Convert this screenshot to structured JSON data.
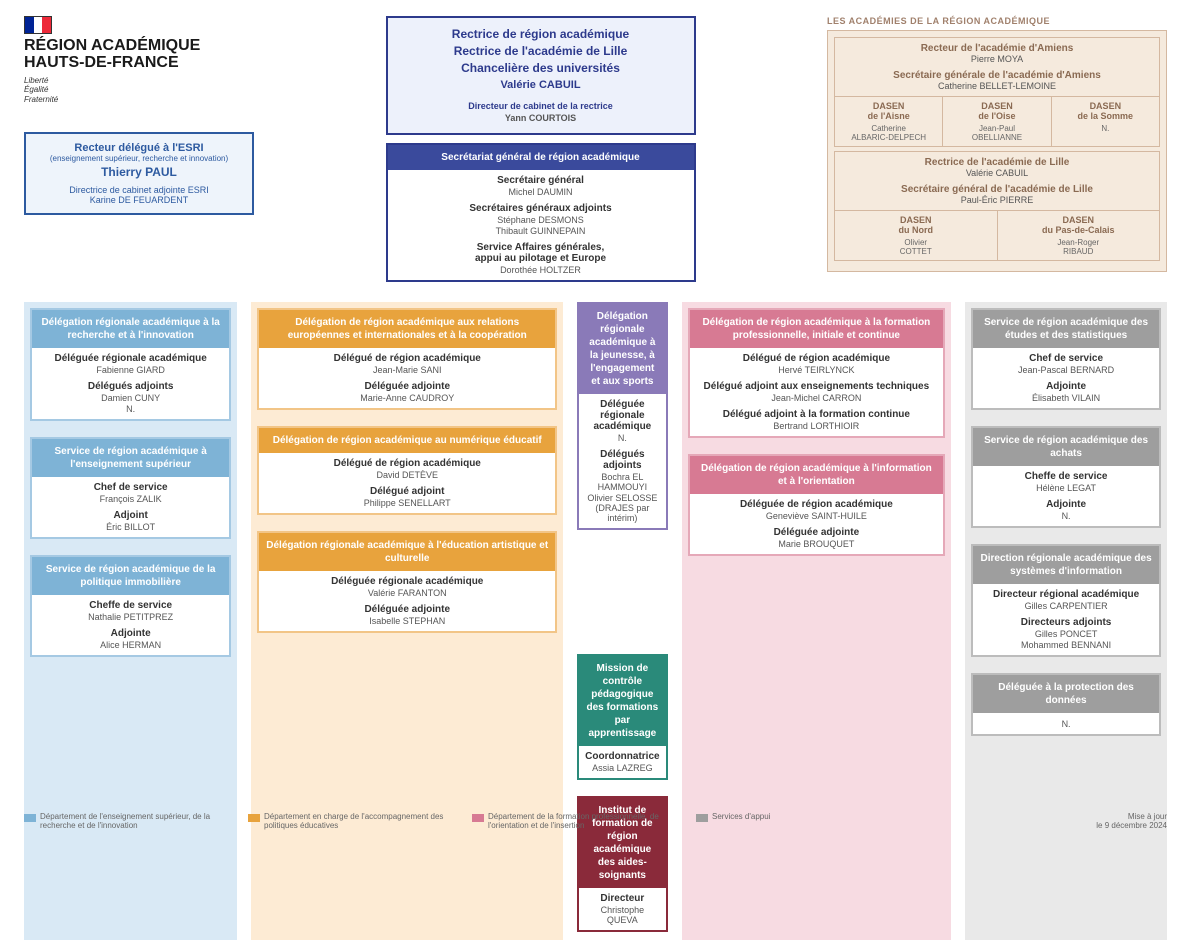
{
  "colors": {
    "dept_esri_bg": "#d9e9f5",
    "dept_esri_border": "#a5c9e3",
    "dept_esri_header": "#7eb3d6",
    "dept_edu_bg": "#fdebd4",
    "dept_edu_border": "#f2c587",
    "dept_edu_header": "#e8a33d",
    "dept_form_bg": "#f7dbe2",
    "dept_form_border": "#e5a8b8",
    "dept_form_header": "#d77a93",
    "svc_bg": "#e9e9e9",
    "svc_border": "#bcbcbc",
    "svc_header": "#9e9e9e",
    "purple_border": "#8a7ab8",
    "purple_header": "#8a7ab8",
    "teal_border": "#2a8a7a",
    "teal_header": "#2a8a7a",
    "maroon_border": "#8a2a3a",
    "maroon_header": "#8a2a3a",
    "rectrice_border": "#2d3a8c",
    "sg_header": "#3a4a9c",
    "flag_blue": "#002395",
    "flag_red": "#ed2939"
  },
  "brand": {
    "title_l1": "RÉGION ACADÉMIQUE",
    "title_l2": "HAUTS-DE-FRANCE",
    "motto_l1": "Liberté",
    "motto_l2": "Égalité",
    "motto_l3": "Fraternité"
  },
  "esri": {
    "title": "Recteur délégué à l'ESRI",
    "subtitle": "(enseignement supérieur, recherche et innovation)",
    "name": "Thierry PAUL",
    "role2": "Directrice de cabinet adjointe ESRI",
    "name2": "Karine DE FEUARDENT"
  },
  "rectrice": {
    "l1": "Rectrice de région académique",
    "l2": "Rectrice de l'académie de Lille",
    "l3": "Chancelière des universités",
    "name": "Valérie CABUIL",
    "dc_title": "Directeur de cabinet de la rectrice",
    "dc_name": "Yann COURTOIS"
  },
  "sg": {
    "header": "Secrétariat général de région académique",
    "r1": "Secrétaire général",
    "n1": "Michel DAUMIN",
    "r2": "Secrétaires généraux adjoints",
    "n2a": "Stéphane DESMONS",
    "n2b": "Thibault GUINNEPAIN",
    "r3": "Service Affaires générales,",
    "r3b": "appui au pilotage et Europe",
    "n3": "Dorothée HOLTZER"
  },
  "academies": {
    "label": "LES ACADÉMIES DE LA RÉGION ACADÉMIQUE",
    "amiens": {
      "t1": "Recteur de l'académie d'Amiens",
      "n1": "Pierre MOYA",
      "t2": "Secrétaire générale de l'académie d'Amiens",
      "n2": "Catherine BELLET-LEMOINE",
      "dasen": [
        {
          "t": "DASEN",
          "t2": "de l'Aisne",
          "n": "Catherine",
          "n2": "ALBARIC-DELPECH"
        },
        {
          "t": "DASEN",
          "t2": "de l'Oise",
          "n": "Jean-Paul",
          "n2": "OBELLIANNE"
        },
        {
          "t": "DASEN",
          "t2": "de la Somme",
          "n": "N.",
          "n2": ""
        }
      ]
    },
    "lille": {
      "t1": "Rectrice de l'académie de Lille",
      "n1": "Valérie CABUIL",
      "t2": "Secrétaire général de l'académie de Lille",
      "n2": "Paul-Éric PIERRE",
      "dasen": [
        {
          "t": "DASEN",
          "t2": "du Nord",
          "n": "Olivier",
          "n2": "COTTET"
        },
        {
          "t": "DASEN",
          "t2": "du Pas-de-Calais",
          "n": "Jean-Roger",
          "n2": "RIBAUD"
        }
      ]
    }
  },
  "col_esri": [
    {
      "h": "Délégation régionale académique à la recherche et à l'innovation",
      "rows": [
        {
          "r": "Déléguée régionale académique",
          "n": "Fabienne GIARD"
        },
        {
          "r": "Délégués adjoints",
          "n": "Damien CUNY"
        },
        {
          "r": "",
          "n": "N."
        }
      ]
    },
    {
      "h": "Service de région académique à l'enseignement supérieur",
      "rows": [
        {
          "r": "Chef de service",
          "n": "François ZALIK"
        },
        {
          "r": "Adjoint",
          "n": "Éric BILLOT"
        }
      ]
    },
    {
      "h": "Service de région académique de la politique immobilière",
      "rows": [
        {
          "r": "Cheffe de service",
          "n": "Nathalie PETITPREZ"
        },
        {
          "r": "Adjointe",
          "n": "Alice HERMAN"
        }
      ]
    }
  ],
  "col_edu": [
    {
      "h": "Délégation de région académique aux relations européennes et internationales et à la coopération",
      "rows": [
        {
          "r": "Délégué de région académique",
          "n": "Jean-Marie SANI"
        },
        {
          "r": "Déléguée adjointe",
          "n": "Marie-Anne CAUDROY"
        }
      ]
    },
    {
      "h": "Délégation de région académique au numérique éducatif",
      "rows": [
        {
          "r": "Délégué de région académique",
          "n": "David DETÈVE"
        },
        {
          "r": "Délégué adjoint",
          "n": "Philippe SENELLART"
        }
      ]
    },
    {
      "h": "Délégation régionale académique à l'éducation artistique et culturelle",
      "rows": [
        {
          "r": "Déléguée régionale académique",
          "n": "Valérie FARANTON"
        },
        {
          "r": "Déléguée adjointe",
          "n": "Isabelle STEPHAN"
        }
      ]
    }
  ],
  "col_mid": [
    {
      "color": "purple",
      "h": "Délégation régionale académique à la jeunesse, à l'engagement et aux sports",
      "rows": [
        {
          "r": "Déléguée régionale académique",
          "n": "N."
        },
        {
          "r": "Délégués adjoints",
          "n": "Bochra EL HAMMOUYI"
        },
        {
          "r": "",
          "n": "Olivier SELOSSE (DRAJES par intérim)"
        }
      ]
    },
    {
      "color": "teal",
      "h": "Mission de contrôle pédagogique des formations par apprentissage",
      "rows": [
        {
          "r": "Coordonnatrice",
          "n": "Assia LAZREG"
        }
      ]
    },
    {
      "color": "maroon",
      "h": "Institut de formation de région académique des aides-soignants",
      "rows": [
        {
          "r": "Directeur",
          "n": "Christophe QUEVA"
        }
      ]
    }
  ],
  "col_form": [
    {
      "h": "Délégation de région académique à la formation professionnelle, initiale et continue",
      "rows": [
        {
          "r": "Délégué de région académique",
          "n": "Hervé TEIRLYNCK"
        },
        {
          "r": "Délégué adjoint aux enseignements techniques",
          "n": "Jean-Michel CARRON"
        },
        {
          "r": "Délégué adjoint à la formation continue",
          "n": "Bertrand LORTHIOIR"
        }
      ]
    },
    {
      "h": "Délégation de région académique à l'information et à l'orientation",
      "rows": [
        {
          "r": "Déléguée de région académique",
          "n": "Geneviève SAINT-HUILE"
        },
        {
          "r": "Déléguée adjointe",
          "n": "Marie BROUQUET"
        }
      ]
    }
  ],
  "col_svc": [
    {
      "h": "Service de région académique des études et des statistiques",
      "rows": [
        {
          "r": "Chef de service",
          "n": "Jean-Pascal BERNARD"
        },
        {
          "r": "Adjointe",
          "n": "Élisabeth VILAIN"
        }
      ]
    },
    {
      "h": "Service de région académique des achats",
      "rows": [
        {
          "r": "Cheffe de service",
          "n": "Hélène LEGAT"
        },
        {
          "r": "Adjointe",
          "n": "N."
        }
      ]
    },
    {
      "h": "Direction régionale académique des systèmes d'information",
      "rows": [
        {
          "r": "Directeur régional académique",
          "n": "Gilles CARPENTIER"
        },
        {
          "r": "Directeurs adjoints",
          "n": "Gilles PONCET"
        },
        {
          "r": "",
          "n": "Mohammed BENNANI"
        }
      ]
    },
    {
      "h": "Déléguée à la protection des données",
      "rows": [
        {
          "r": "",
          "n": "N."
        }
      ]
    }
  ],
  "legend": {
    "esri": "Département de l'enseignement supérieur, de la recherche et de l'innovation",
    "edu": "Département en charge de l'accompagnement des politiques éducatives",
    "form": "Département de la formation professionnelle, de l'orientation et de l'insertion",
    "svc": "Services d'appui",
    "date_l1": "Mise à jour",
    "date_l2": "le 9 décembre 2024"
  }
}
